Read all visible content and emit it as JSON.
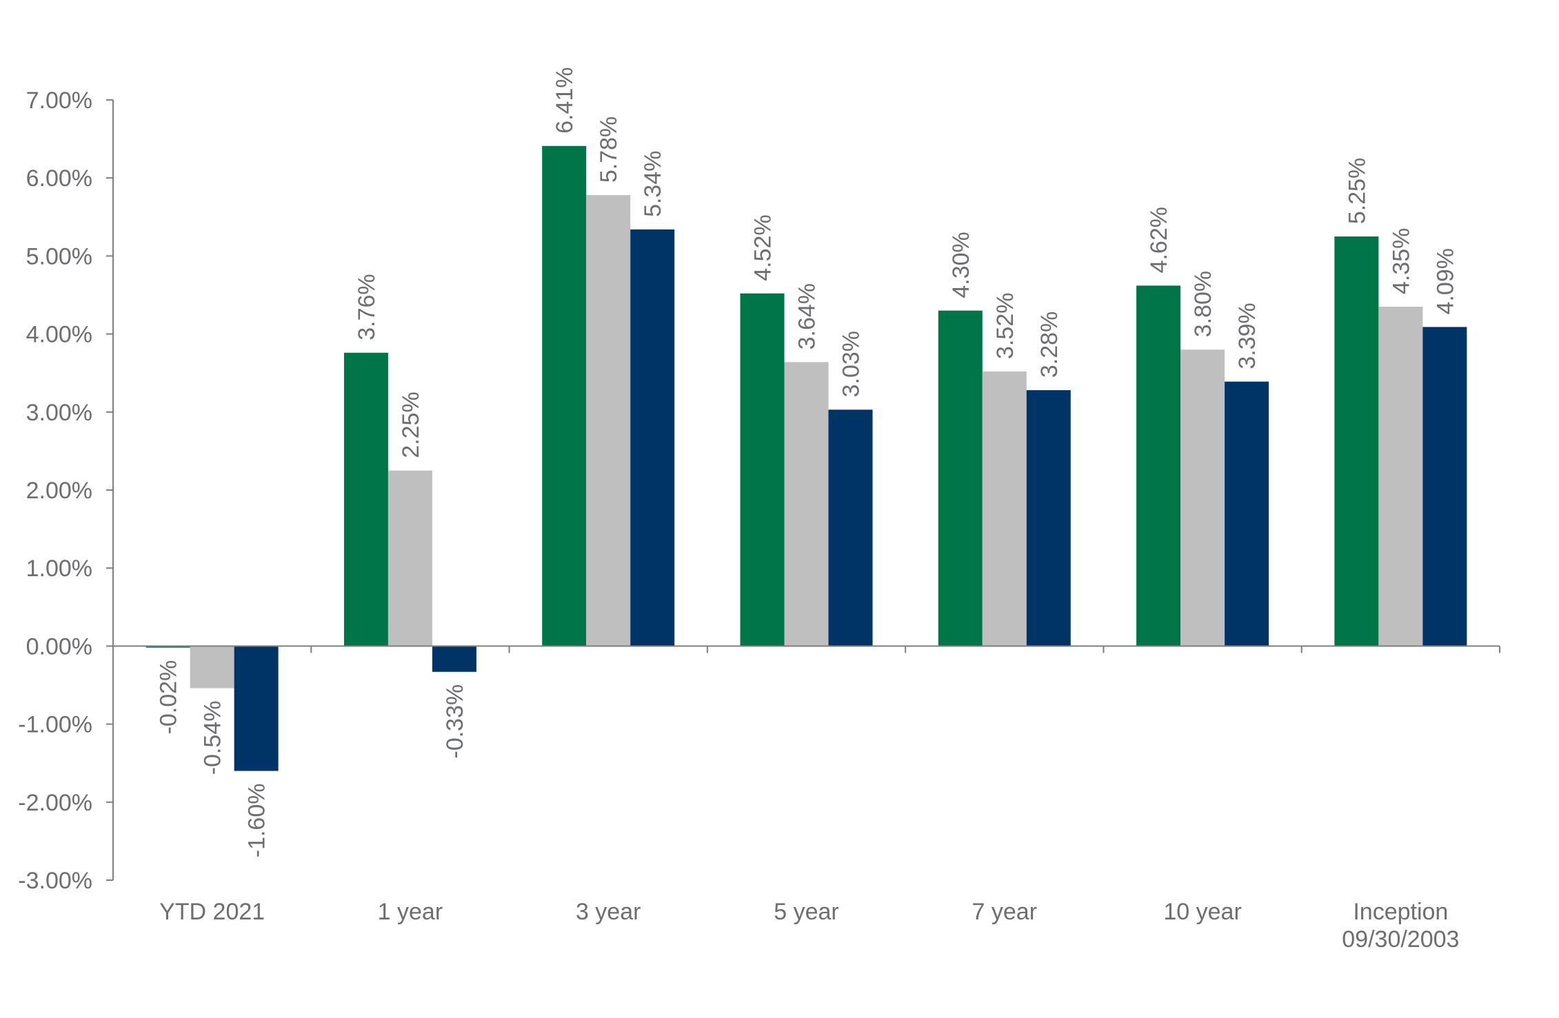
{
  "chart_data": {
    "type": "bar",
    "title": "",
    "xlabel": "",
    "ylabel": "",
    "ylim": [
      -3,
      7
    ],
    "yticks": [
      7,
      6,
      5,
      4,
      3,
      2,
      1,
      0,
      -1,
      -2,
      -3
    ],
    "ytick_labels": [
      "7.00%",
      "6.00%",
      "5.00%",
      "4.00%",
      "3.00%",
      "2.00%",
      "1.00%",
      "0.00%",
      "-1.00%",
      "-2.00%",
      "-3.00%"
    ],
    "categories": [
      [
        "YTD 2021"
      ],
      [
        "1 year"
      ],
      [
        "3 year"
      ],
      [
        "5 year"
      ],
      [
        "7 year"
      ],
      [
        "10 year"
      ],
      [
        "Inception",
        "09/30/2003"
      ]
    ],
    "series": [
      {
        "name": "Series 1",
        "color": "#00754a",
        "values": [
          -0.02,
          3.76,
          6.41,
          4.52,
          4.3,
          4.62,
          5.25
        ]
      },
      {
        "name": "Series 2",
        "color": "#bfbfbf",
        "values": [
          -0.54,
          2.25,
          5.78,
          3.64,
          3.52,
          3.8,
          4.35
        ]
      },
      {
        "name": "Series 3",
        "color": "#003366",
        "values": [
          -1.6,
          -0.33,
          5.34,
          3.03,
          3.28,
          3.39,
          4.09
        ]
      }
    ],
    "data_labels": [
      [
        "-0.02%",
        "3.76%",
        "6.41%",
        "4.52%",
        "4.30%",
        "4.62%",
        "5.25%"
      ],
      [
        "-0.54%",
        "2.25%",
        "5.78%",
        "3.64%",
        "3.52%",
        "3.80%",
        "4.35%"
      ],
      [
        "-1.60%",
        "-0.33%",
        "5.34%",
        "3.03%",
        "3.28%",
        "3.39%",
        "4.09%"
      ]
    ],
    "grid": false,
    "legend": "none"
  }
}
